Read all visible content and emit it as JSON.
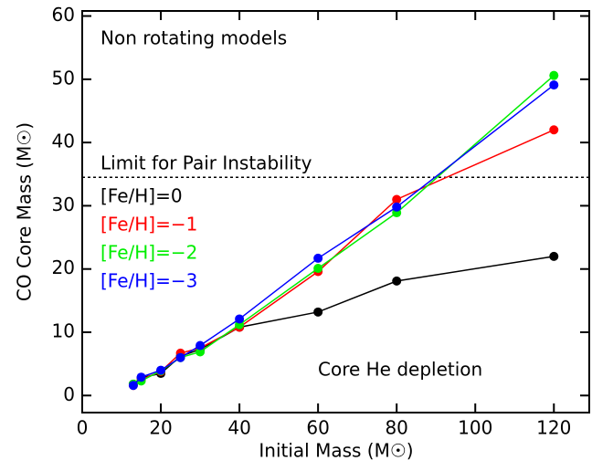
{
  "chart_data": {
    "type": "line",
    "x_label": "Initial Mass (M☉)",
    "y_label": "CO Core Mass (M☉)",
    "annotations": [
      "Non rotating models",
      "Core He depletion"
    ],
    "hline": {
      "value": 34.5,
      "label": "Limit for Pair Instability"
    },
    "x": [
      13,
      15,
      20,
      25,
      30,
      40,
      60,
      80,
      120
    ],
    "series": [
      {
        "name": "[Fe/H]=0",
        "color": "#000000",
        "values": [
          1.8,
          2.8,
          3.5,
          6.2,
          7.3,
          10.8,
          13.2,
          18.1,
          22.0
        ]
      },
      {
        "name": "[Fe/H]=−1",
        "color": "#ff0000",
        "values": [
          1.6,
          2.5,
          3.8,
          6.7,
          7.5,
          10.8,
          19.6,
          31.0,
          42.0
        ]
      },
      {
        "name": "[Fe/H]=−2",
        "color": "#00ee00",
        "values": [
          1.8,
          2.3,
          3.9,
          6.0,
          6.9,
          11.2,
          20.1,
          28.9,
          50.6
        ]
      },
      {
        "name": "[Fe/H]=−3",
        "color": "#0000ff",
        "values": [
          1.6,
          2.9,
          4.0,
          6.0,
          7.9,
          12.1,
          21.7,
          29.8,
          49.1
        ]
      }
    ],
    "xlim": [
      0,
      129
    ],
    "xticks": [
      0,
      20,
      40,
      60,
      80,
      100,
      120
    ],
    "ylim": [
      -2.7,
      60.8
    ],
    "yticks": [
      0,
      10,
      20,
      30,
      40,
      50,
      60
    ]
  }
}
